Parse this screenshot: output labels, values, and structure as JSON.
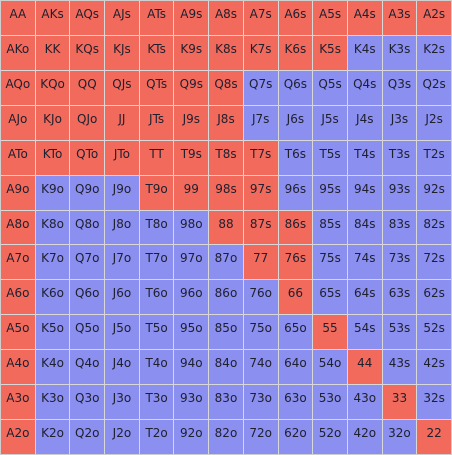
{
  "colors": {
    "raise": "#f26a5b",
    "fold": "#8a8ff0",
    "text": "#1f1f2e",
    "grid_line": "#d8d8d8"
  },
  "grid": {
    "rows": [
      [
        "AA",
        "AKs",
        "AQs",
        "AJs",
        "ATs",
        "A9s",
        "A8s",
        "A7s",
        "A6s",
        "A5s",
        "A4s",
        "A3s",
        "A2s"
      ],
      [
        "AKo",
        "KK",
        "KQs",
        "KJs",
        "KTs",
        "K9s",
        "K8s",
        "K7s",
        "K6s",
        "K5s",
        "K4s",
        "K3s",
        "K2s"
      ],
      [
        "AQo",
        "KQo",
        "QQ",
        "QJs",
        "QTs",
        "Q9s",
        "Q8s",
        "Q7s",
        "Q6s",
        "Q5s",
        "Q4s",
        "Q3s",
        "Q2s"
      ],
      [
        "AJo",
        "KJo",
        "QJo",
        "JJ",
        "JTs",
        "J9s",
        "J8s",
        "J7s",
        "J6s",
        "J5s",
        "J4s",
        "J3s",
        "J2s"
      ],
      [
        "ATo",
        "KTo",
        "QTo",
        "JTo",
        "TT",
        "T9s",
        "T8s",
        "T7s",
        "T6s",
        "T5s",
        "T4s",
        "T3s",
        "T2s"
      ],
      [
        "A9o",
        "K9o",
        "Q9o",
        "J9o",
        "T9o",
        "99",
        "98s",
        "97s",
        "96s",
        "95s",
        "94s",
        "93s",
        "92s"
      ],
      [
        "A8o",
        "K8o",
        "Q8o",
        "J8o",
        "T8o",
        "98o",
        "88",
        "87s",
        "86s",
        "85s",
        "84s",
        "83s",
        "82s"
      ],
      [
        "A7o",
        "K7o",
        "Q7o",
        "J7o",
        "T7o",
        "97o",
        "87o",
        "77",
        "76s",
        "75s",
        "74s",
        "73s",
        "72s"
      ],
      [
        "A6o",
        "K6o",
        "Q6o",
        "J6o",
        "T6o",
        "96o",
        "86o",
        "76o",
        "66",
        "65s",
        "64s",
        "63s",
        "62s"
      ],
      [
        "A5o",
        "K5o",
        "Q5o",
        "J5o",
        "T5o",
        "95o",
        "85o",
        "75o",
        "65o",
        "55",
        "54s",
        "53s",
        "52s"
      ],
      [
        "A4o",
        "K4o",
        "Q4o",
        "J4o",
        "T4o",
        "94o",
        "84o",
        "74o",
        "64o",
        "54o",
        "44",
        "43s",
        "42s"
      ],
      [
        "A3o",
        "K3o",
        "Q3o",
        "J3o",
        "T3o",
        "93o",
        "83o",
        "73o",
        "63o",
        "53o",
        "43o",
        "33",
        "32s"
      ],
      [
        "A2o",
        "K2o",
        "Q2o",
        "J2o",
        "T2o",
        "92o",
        "82o",
        "72o",
        "62o",
        "52o",
        "42o",
        "32o",
        "22"
      ]
    ],
    "actions": [
      [
        "r",
        "r",
        "r",
        "r",
        "r",
        "r",
        "r",
        "r",
        "r",
        "r",
        "r",
        "r",
        "r"
      ],
      [
        "r",
        "r",
        "r",
        "r",
        "r",
        "r",
        "r",
        "r",
        "r",
        "r",
        "f",
        "f",
        "f"
      ],
      [
        "r",
        "r",
        "r",
        "r",
        "r",
        "r",
        "r",
        "f",
        "f",
        "f",
        "f",
        "f",
        "f"
      ],
      [
        "r",
        "r",
        "r",
        "r",
        "r",
        "r",
        "r",
        "f",
        "f",
        "f",
        "f",
        "f",
        "f"
      ],
      [
        "r",
        "r",
        "r",
        "r",
        "r",
        "r",
        "r",
        "r",
        "f",
        "f",
        "f",
        "f",
        "f"
      ],
      [
        "r",
        "f",
        "f",
        "f",
        "r",
        "r",
        "r",
        "r",
        "f",
        "f",
        "f",
        "f",
        "f"
      ],
      [
        "r",
        "f",
        "f",
        "f",
        "f",
        "f",
        "r",
        "r",
        "r",
        "f",
        "f",
        "f",
        "f"
      ],
      [
        "r",
        "f",
        "f",
        "f",
        "f",
        "f",
        "f",
        "r",
        "r",
        "f",
        "f",
        "f",
        "f"
      ],
      [
        "r",
        "f",
        "f",
        "f",
        "f",
        "f",
        "f",
        "f",
        "r",
        "f",
        "f",
        "f",
        "f"
      ],
      [
        "r",
        "f",
        "f",
        "f",
        "f",
        "f",
        "f",
        "f",
        "f",
        "r",
        "f",
        "f",
        "f"
      ],
      [
        "r",
        "f",
        "f",
        "f",
        "f",
        "f",
        "f",
        "f",
        "f",
        "f",
        "r",
        "f",
        "f"
      ],
      [
        "r",
        "f",
        "f",
        "f",
        "f",
        "f",
        "f",
        "f",
        "f",
        "f",
        "f",
        "r",
        "f"
      ],
      [
        "r",
        "f",
        "f",
        "f",
        "f",
        "f",
        "f",
        "f",
        "f",
        "f",
        "f",
        "f",
        "r"
      ]
    ]
  }
}
